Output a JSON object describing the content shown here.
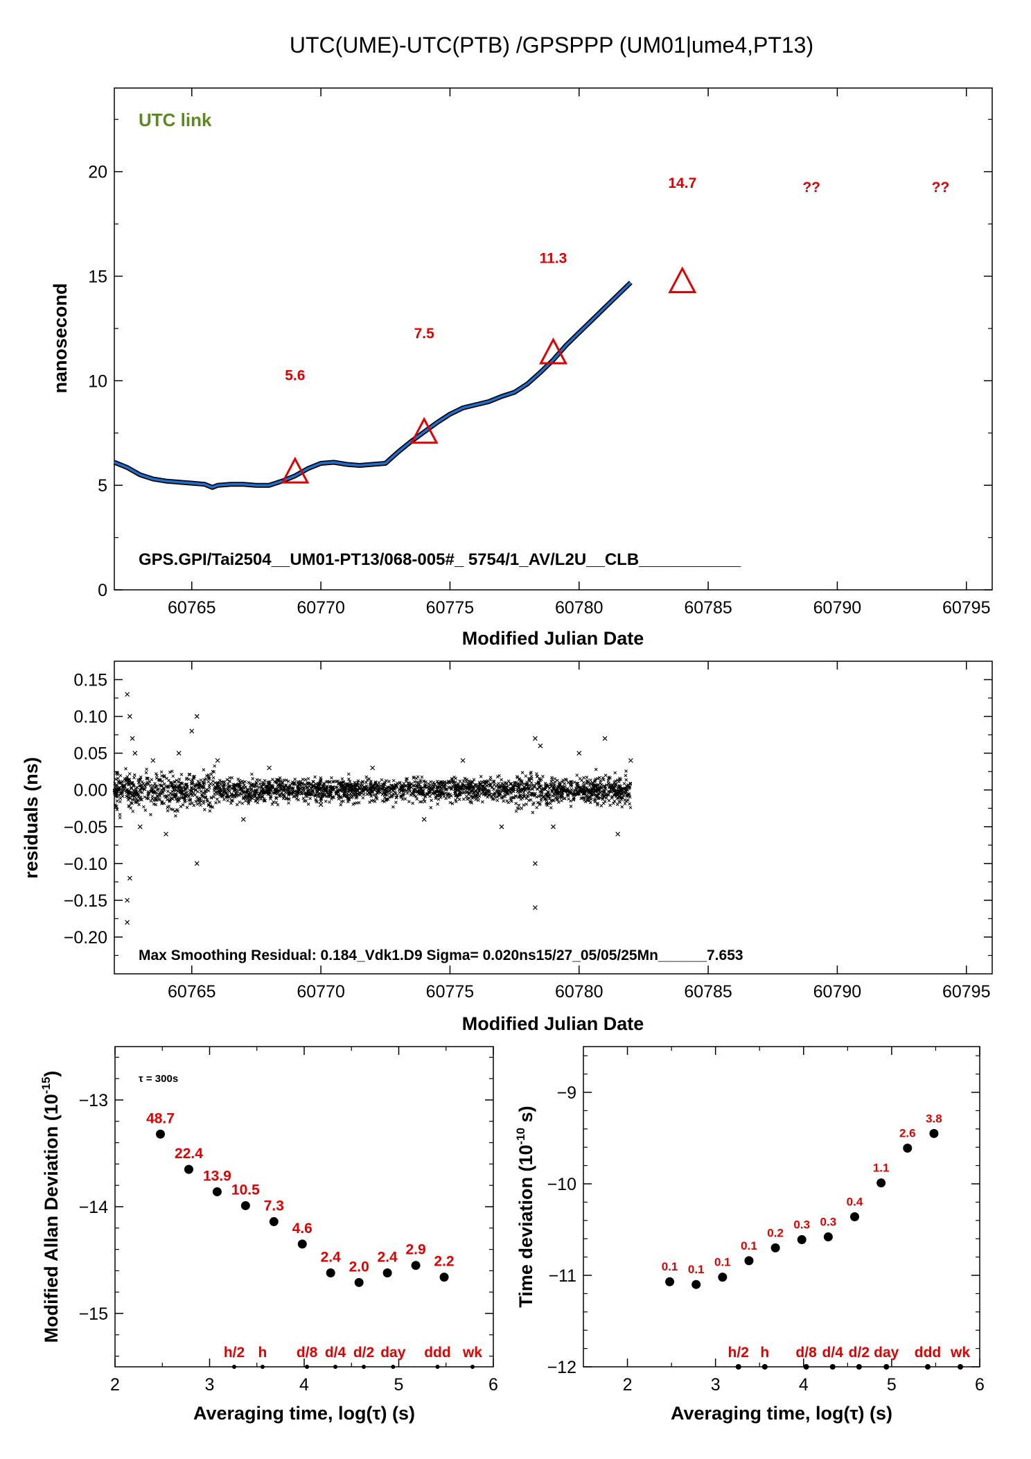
{
  "figure": {
    "title": "UTC(UME)-UTC(PTB)  /GPSPPP  (UM01|ume4,PT13)"
  },
  "colors": {
    "link_label": "#5a8a1e",
    "annotation": "#e00000",
    "series_blue": "#1f6fd1",
    "series_outline": "#000000"
  },
  "panel_top": {
    "link_label": "UTC link",
    "footer": "GPS.GPI/Tai2504__UM01-PT13/068-005#_  5754/1_AV/L2U__CLB___________",
    "xlabel": "Modified Julian Date",
    "ylabel": "nanosecond",
    "xlim": [
      60762,
      60796
    ],
    "ylim": [
      0,
      24
    ],
    "xticks": [
      60765,
      60770,
      60775,
      60780,
      60785,
      60790,
      60795
    ],
    "yticks": [
      0,
      5,
      10,
      15,
      20
    ],
    "triangles": [
      {
        "x": 60769,
        "y": 5.6
      },
      {
        "x": 60774,
        "y": 7.5
      },
      {
        "x": 60779,
        "y": 11.3
      },
      {
        "x": 60784,
        "y": 14.7
      }
    ],
    "weekly_labels": [
      {
        "x": 60769,
        "y": 10.3,
        "text": "5.6"
      },
      {
        "x": 60774,
        "y": 12.3,
        "text": "7.5"
      },
      {
        "x": 60779,
        "y": 15.9,
        "text": "11.3"
      },
      {
        "x": 60784,
        "y": 19.5,
        "text": "14.7"
      },
      {
        "x": 60789,
        "y": 19.3,
        "text": "??"
      },
      {
        "x": 60794,
        "y": 19.3,
        "text": "??"
      }
    ]
  },
  "panel_mid": {
    "xlabel": "Modified Julian Date",
    "ylabel": "residuals (ns)",
    "xlim": [
      60762,
      60796
    ],
    "ylim": [
      -0.25,
      0.175
    ],
    "xticks": [
      60765,
      60770,
      60775,
      60780,
      60785,
      60790,
      60795
    ],
    "yticks": [
      -0.2,
      -0.15,
      -0.1,
      -0.05,
      0.0,
      0.05,
      0.1,
      0.15
    ],
    "ytick_labels": [
      "−0.20",
      "−0.15",
      "−0.10",
      "−0.05",
      "0.00",
      "0.05",
      "0.10",
      "0.15"
    ],
    "footer": "Max Smoothing Residual: 0.184_Vdk1.D9  Sigma= 0.020ns15/27_05/05/25Mn______7.653"
  },
  "panel_adev": {
    "xlabel": "Averaging time, log(τ) (s)",
    "ylabel": "Modified Allan Deviation (10",
    "ylabel_sup": "-15",
    "ylabel_end": ")",
    "tau_note": "τ = 300s",
    "xlim": [
      2,
      6
    ],
    "ylim": [
      -15.5,
      -12.5
    ],
    "xticks": [
      2,
      3,
      4,
      5,
      6
    ],
    "yticks": [
      -15,
      -14,
      -13
    ],
    "ytick_labels": [
      "−15",
      "−14",
      "−13"
    ],
    "marker_labels": [
      "h/2",
      "h",
      "d/8",
      "d/4",
      "d/2",
      "day",
      "ddd",
      "wk"
    ]
  },
  "panel_tdev": {
    "xlabel": "Averaging time, log(τ) (s)",
    "ylabel": "Time deviation (10",
    "ylabel_sup": "-10",
    "ylabel_end": " s)",
    "xlim": [
      1.5,
      6
    ],
    "ylim": [
      -12,
      -8.5
    ],
    "xticks": [
      2,
      3,
      4,
      5,
      6
    ],
    "yticks": [
      -12,
      -11,
      -10,
      -9
    ],
    "ytick_labels": [
      "−12",
      "−11",
      "−10",
      "−9"
    ],
    "marker_labels": [
      "h/2",
      "h",
      "d/8",
      "d/4",
      "d/2",
      "day",
      "ddd",
      "wk"
    ]
  },
  "chart_data": [
    {
      "type": "line",
      "title": "UTC(UME)-UTC(PTB)  /GPSPPP  (UM01|ume4,PT13)",
      "xlabel": "Modified Julian Date",
      "ylabel": "nanosecond",
      "xlim": [
        60762,
        60796
      ],
      "ylim": [
        0,
        24
      ],
      "series": [
        {
          "values": [
            [
              60762.0,
              6.1
            ],
            [
              60762.5,
              5.85
            ],
            [
              60763.0,
              5.5
            ],
            [
              60763.5,
              5.3
            ],
            [
              60764.0,
              5.2
            ],
            [
              60764.5,
              5.15
            ],
            [
              60765.0,
              5.1
            ],
            [
              60765.5,
              5.05
            ],
            [
              60765.8,
              4.9
            ],
            [
              60766.0,
              5.0
            ],
            [
              60766.5,
              5.05
            ],
            [
              60767.0,
              5.05
            ],
            [
              60767.5,
              5.0
            ],
            [
              60768.0,
              5.0
            ],
            [
              60768.5,
              5.2
            ],
            [
              60769.0,
              5.45
            ],
            [
              60769.5,
              5.8
            ],
            [
              60770.0,
              6.05
            ],
            [
              60770.5,
              6.1
            ],
            [
              60771.0,
              6.0
            ],
            [
              60771.5,
              5.95
            ],
            [
              60772.0,
              6.0
            ],
            [
              60772.5,
              6.05
            ],
            [
              60773.0,
              6.6
            ],
            [
              60773.5,
              7.1
            ],
            [
              60774.0,
              7.55
            ],
            [
              60774.5,
              8.0
            ],
            [
              60775.0,
              8.4
            ],
            [
              60775.5,
              8.7
            ],
            [
              60776.0,
              8.85
            ],
            [
              60776.5,
              9.0
            ],
            [
              60777.0,
              9.25
            ],
            [
              60777.5,
              9.45
            ],
            [
              60778.0,
              9.85
            ],
            [
              60778.5,
              10.4
            ],
            [
              60779.0,
              11.0
            ],
            [
              60779.5,
              11.7
            ],
            [
              60780.0,
              12.3
            ],
            [
              60780.5,
              12.9
            ],
            [
              60781.0,
              13.5
            ],
            [
              60781.5,
              14.1
            ],
            [
              60782.0,
              14.7
            ]
          ]
        }
      ],
      "markers": [
        [
          60769,
          5.6
        ],
        [
          60774,
          7.5
        ],
        [
          60779,
          11.3
        ],
        [
          60784,
          14.7
        ]
      ]
    },
    {
      "type": "scatter",
      "xlabel": "Modified Julian Date",
      "ylabel": "residuals (ns)",
      "xlim": [
        60762,
        60796
      ],
      "ylim": [
        -0.25,
        0.175
      ],
      "series": [
        {
          "values": [
            [
              60762.5,
              0.13
            ],
            [
              60762.5,
              -0.18
            ],
            [
              60762.6,
              0.1
            ],
            [
              60762.5,
              -0.15
            ],
            [
              60762.7,
              0.07
            ],
            [
              60762.6,
              -0.12
            ],
            [
              60762.8,
              0.05
            ],
            [
              60763.0,
              -0.05
            ],
            [
              60763.5,
              0.04
            ],
            [
              60764.0,
              -0.06
            ],
            [
              60764.5,
              0.05
            ],
            [
              60765.0,
              0.08
            ],
            [
              60765.2,
              0.1
            ],
            [
              60765.2,
              -0.1
            ],
            [
              60766.0,
              0.04
            ],
            [
              60767.0,
              -0.04
            ],
            [
              60768.0,
              0.03
            ],
            [
              60770.0,
              -0.02
            ],
            [
              60772.0,
              0.03
            ],
            [
              60774.0,
              -0.04
            ],
            [
              60775.5,
              0.04
            ],
            [
              60777.0,
              -0.05
            ],
            [
              60778.3,
              0.07
            ],
            [
              60778.3,
              -0.16
            ],
            [
              60778.3,
              -0.1
            ],
            [
              60778.5,
              0.06
            ],
            [
              60779.0,
              -0.05
            ],
            [
              60780.0,
              0.05
            ],
            [
              60781.0,
              0.07
            ],
            [
              60781.5,
              -0.06
            ],
            [
              60782.0,
              0.04
            ]
          ]
        }
      ]
    },
    {
      "type": "scatter",
      "xlabel": "Averaging time, log(τ) (s)",
      "ylabel": "Modified Allan Deviation (10-15)",
      "xlim": [
        2,
        6
      ],
      "ylim": [
        -15.5,
        -12.5
      ],
      "series": [
        {
          "values": [
            {
              "x": 2.48,
              "y": -13.32,
              "label": "48.7"
            },
            {
              "x": 2.78,
              "y": -13.65,
              "label": "22.4"
            },
            {
              "x": 3.08,
              "y": -13.86,
              "label": "13.9"
            },
            {
              "x": 3.38,
              "y": -13.99,
              "label": "10.5"
            },
            {
              "x": 3.68,
              "y": -14.14,
              "label": "7.3"
            },
            {
              "x": 3.98,
              "y": -14.35,
              "label": "4.6"
            },
            {
              "x": 4.28,
              "y": -14.62,
              "label": "2.4"
            },
            {
              "x": 4.58,
              "y": -14.71,
              "label": "2.0"
            },
            {
              "x": 4.88,
              "y": -14.62,
              "label": "2.4"
            },
            {
              "x": 5.18,
              "y": -14.55,
              "label": "2.9"
            },
            {
              "x": 5.48,
              "y": -14.66,
              "label": "2.2"
            }
          ]
        }
      ],
      "reference_markers": [
        {
          "x": 3.26,
          "label": "h/2"
        },
        {
          "x": 3.56,
          "label": "h"
        },
        {
          "x": 4.03,
          "label": "d/8"
        },
        {
          "x": 4.33,
          "label": "d/4"
        },
        {
          "x": 4.63,
          "label": "d/2"
        },
        {
          "x": 4.94,
          "label": "day"
        },
        {
          "x": 5.41,
          "label": "ddd"
        },
        {
          "x": 5.78,
          "label": "wk"
        }
      ]
    },
    {
      "type": "scatter",
      "xlabel": "Averaging time, log(τ) (s)",
      "ylabel": "Time deviation (10-10 s)",
      "xlim": [
        1.5,
        6
      ],
      "ylim": [
        -12,
        -8.5
      ],
      "series": [
        {
          "values": [
            {
              "x": 2.48,
              "y": -11.07,
              "label": "0.1"
            },
            {
              "x": 2.78,
              "y": -11.1,
              "label": "0.1"
            },
            {
              "x": 3.08,
              "y": -11.02,
              "label": "0.1"
            },
            {
              "x": 3.38,
              "y": -10.84,
              "label": "0.1"
            },
            {
              "x": 3.68,
              "y": -10.7,
              "label": "0.2"
            },
            {
              "x": 3.98,
              "y": -10.61,
              "label": "0.3"
            },
            {
              "x": 4.28,
              "y": -10.58,
              "label": "0.3"
            },
            {
              "x": 4.58,
              "y": -10.36,
              "label": "0.4"
            },
            {
              "x": 4.88,
              "y": -9.99,
              "label": "1.1"
            },
            {
              "x": 5.18,
              "y": -9.61,
              "label": "2.6"
            },
            {
              "x": 5.48,
              "y": -9.45,
              "label": "3.8"
            }
          ]
        }
      ],
      "reference_markers": [
        {
          "x": 3.26,
          "label": "h/2"
        },
        {
          "x": 3.56,
          "label": "h"
        },
        {
          "x": 4.03,
          "label": "d/8"
        },
        {
          "x": 4.33,
          "label": "d/4"
        },
        {
          "x": 4.63,
          "label": "d/2"
        },
        {
          "x": 4.94,
          "label": "day"
        },
        {
          "x": 5.41,
          "label": "ddd"
        },
        {
          "x": 5.78,
          "label": "wk"
        }
      ]
    }
  ]
}
